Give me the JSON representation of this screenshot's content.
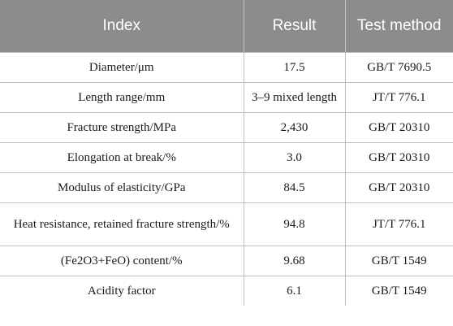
{
  "table": {
    "headers": [
      "Index",
      "Result",
      "Test method"
    ],
    "rows": [
      [
        "Diameter/μm",
        "17.5",
        "GB/T 7690.5"
      ],
      [
        "Length range/mm",
        "3–9 mixed length",
        "JT/T 776.1"
      ],
      [
        "Fracture strength/MPa",
        "2,430",
        "GB/T 20310"
      ],
      [
        "Elongation at break/%",
        "3.0",
        "GB/T 20310"
      ],
      [
        "Modulus of elasticity/GPa",
        "84.5",
        "GB/T 20310"
      ],
      [
        "Heat resistance, retained fracture strength/%",
        "94.8",
        "JT/T 776.1"
      ],
      [
        "(Fe2O3+FeO) content/%",
        "9.68",
        "GB/T 1549"
      ],
      [
        "Acidity factor",
        "6.1",
        "GB/T 1549"
      ]
    ]
  },
  "colors": {
    "header_bg": "#8c8c8c",
    "header_text": "#ffffff",
    "grid": "#bfbfbf"
  }
}
